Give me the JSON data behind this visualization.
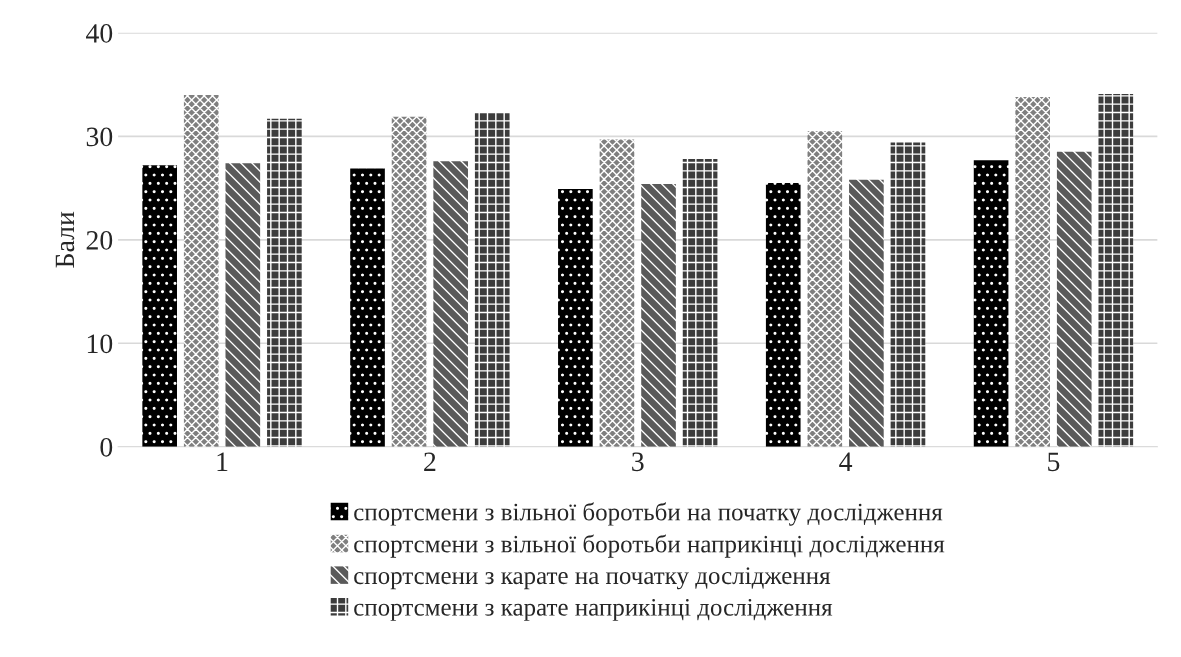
{
  "chart_data": {
    "type": "bar",
    "ylabel": "Бали",
    "categories": [
      "1",
      "2",
      "3",
      "4",
      "5"
    ],
    "series": [
      {
        "name": "спортсмени з вільної боротьби на початку дослідження",
        "color": "#000000",
        "values": [
          27.2,
          26.9,
          24.9,
          25.5,
          27.7
        ]
      },
      {
        "name": "спортсмени з вільної боротьби наприкінці дослідження",
        "color": "#7f7f7f",
        "values": [
          34.0,
          31.9,
          29.7,
          30.5,
          33.8
        ]
      },
      {
        "name": "спортсмени з карате на початку дослідження",
        "color": "#5a5a5a",
        "values": [
          27.4,
          27.6,
          25.4,
          25.8,
          28.5
        ]
      },
      {
        "name": "спортсмени з карате наприкінці дослідження",
        "color": "#3c3c3c",
        "values": [
          31.7,
          32.3,
          27.8,
          29.4,
          34.1
        ]
      }
    ],
    "ylim": [
      0,
      40
    ],
    "yticks": [
      0,
      10,
      20,
      30,
      40
    ],
    "grid": "y",
    "legend": "bottom"
  }
}
